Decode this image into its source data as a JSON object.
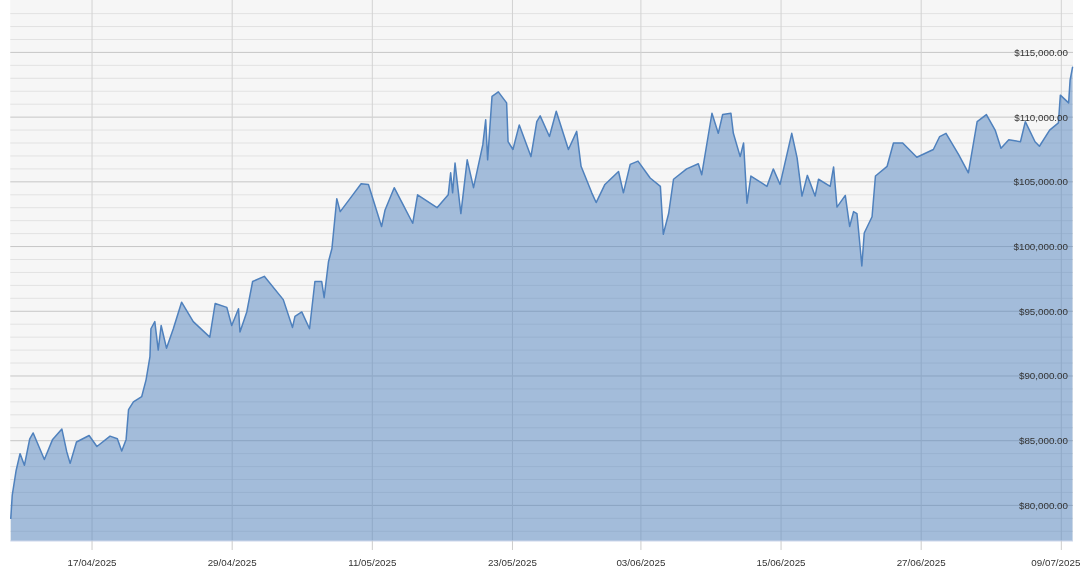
{
  "chart_data": {
    "type": "area",
    "color": "#4f81bd",
    "grid": true,
    "xlim": [
      "2025-04-10",
      "2025-07-10"
    ],
    "ylim": [
      77250,
      119050
    ],
    "xticks": [
      {
        "value": "2025-04-17",
        "label": "17/04/2025"
      },
      {
        "value": "2025-04-29",
        "label": "29/04/2025"
      },
      {
        "value": "2025-05-11",
        "label": "11/05/2025"
      },
      {
        "value": "2025-05-23",
        "label": "23/05/2025"
      },
      {
        "value": "2025-06-03",
        "label": "03/06/2025"
      },
      {
        "value": "2025-06-15",
        "label": "15/06/2025"
      },
      {
        "value": "2025-06-27",
        "label": "27/06/2025"
      },
      {
        "value": "2025-07-09",
        "label": "09/07/2025"
      }
    ],
    "yticks": [
      {
        "value": 78000,
        "label": null
      },
      {
        "value": 79000,
        "label": null
      },
      {
        "value": 80000,
        "label": "$80,000.00"
      },
      {
        "value": 81000,
        "label": null
      },
      {
        "value": 82000,
        "label": null
      },
      {
        "value": 83000,
        "label": null
      },
      {
        "value": 84000,
        "label": null
      },
      {
        "value": 85000,
        "label": "$85,000.00"
      },
      {
        "value": 86000,
        "label": null
      },
      {
        "value": 87000,
        "label": null
      },
      {
        "value": 88000,
        "label": null
      },
      {
        "value": 89000,
        "label": null
      },
      {
        "value": 90000,
        "label": "$90,000.00"
      },
      {
        "value": 91000,
        "label": null
      },
      {
        "value": 92000,
        "label": null
      },
      {
        "value": 93000,
        "label": null
      },
      {
        "value": 94000,
        "label": null
      },
      {
        "value": 95000,
        "label": "$95,000.00"
      },
      {
        "value": 96000,
        "label": null
      },
      {
        "value": 97000,
        "label": null
      },
      {
        "value": 98000,
        "label": null
      },
      {
        "value": 99000,
        "label": null
      },
      {
        "value": 100000,
        "label": "$100,000.00"
      },
      {
        "value": 101000,
        "label": null
      },
      {
        "value": 102000,
        "label": null
      },
      {
        "value": 103000,
        "label": null
      },
      {
        "value": 104000,
        "label": null
      },
      {
        "value": 105000,
        "label": "$105,000.00"
      },
      {
        "value": 106000,
        "label": null
      },
      {
        "value": 107000,
        "label": null
      },
      {
        "value": 108000,
        "label": null
      },
      {
        "value": 109000,
        "label": null
      },
      {
        "value": 110000,
        "label": "$110,000.00"
      },
      {
        "value": 111000,
        "label": null
      },
      {
        "value": 112000,
        "label": null
      },
      {
        "value": 113000,
        "label": null
      },
      {
        "value": 114000,
        "label": null
      },
      {
        "value": 115000,
        "label": "$115,000.00"
      },
      {
        "value": 116000,
        "label": null
      },
      {
        "value": 117000,
        "label": null
      },
      {
        "value": 118000,
        "label": null
      }
    ],
    "x": [
      "2025-04-10T01:00",
      "2025-04-10T04:00",
      "2025-04-10T12:00",
      "2025-04-10T20:00",
      "2025-04-11T05:00",
      "2025-04-11T16:00",
      "2025-04-11T23:00",
      "2025-04-12T22:00",
      "2025-04-13T15:00",
      "2025-04-14T10:00",
      "2025-04-14T20:00",
      "2025-04-15T03:00",
      "2025-04-15T16:00",
      "2025-04-16T18:00",
      "2025-04-17T10:00",
      "2025-04-18T13:00",
      "2025-04-19T04:00",
      "2025-04-19T13:00",
      "2025-04-19T22:00",
      "2025-04-20T03:00",
      "2025-04-20T13:00",
      "2025-04-21T06:00",
      "2025-04-21T15:00",
      "2025-04-21T23:00",
      "2025-04-22T01:00",
      "2025-04-22T09:00",
      "2025-04-22T16:00",
      "2025-04-22T22:00",
      "2025-04-23T09:00",
      "2025-04-23T23:00",
      "2025-04-24T16:00",
      "2025-04-25T16:00",
      "2025-04-27T02:00",
      "2025-04-27T13:00",
      "2025-04-28T13:00",
      "2025-04-28T23:00",
      "2025-04-29T13:00",
      "2025-04-29T16:00",
      "2025-04-30T06:00",
      "2025-04-30T18:00",
      "2025-05-01T18:00",
      "2025-05-03T09:00",
      "2025-05-04T04:00",
      "2025-05-04T09:00",
      "2025-05-04T23:00",
      "2025-05-05T15:00",
      "2025-05-06T02:00",
      "2025-05-06T16:00",
      "2025-05-06T21:00",
      "2025-05-07T06:00",
      "2025-05-07T13:00",
      "2025-05-07T23:00",
      "2025-05-08T06:00",
      "2025-05-09T09:00",
      "2025-05-10T01:00",
      "2025-05-10T16:00",
      "2025-05-11T19:00",
      "2025-05-12T02:00",
      "2025-05-12T21:00",
      "2025-05-13T13:00",
      "2025-05-14T11:00",
      "2025-05-14T21:00",
      "2025-05-16T13:00",
      "2025-05-17T12:00",
      "2025-05-17T17:00",
      "2025-05-17T21:00",
      "2025-05-18T02:00",
      "2025-05-18T14:00",
      "2025-05-19T03:00",
      "2025-05-19T16:00",
      "2025-05-20T11:00",
      "2025-05-20T17:00",
      "2025-05-20T21:00",
      "2025-05-21T06:00",
      "2025-05-21T19:00",
      "2025-05-22T12:00",
      "2025-05-22T15:00",
      "2025-05-23T01:00",
      "2025-05-23T14:00",
      "2025-05-24T14:00",
      "2025-05-25T02:00",
      "2025-05-25T09:00",
      "2025-05-26T04:00",
      "2025-05-26T18:00",
      "2025-05-27T19:00",
      "2025-05-28T12:00",
      "2025-05-28T21:00",
      "2025-05-29T19:00",
      "2025-05-30T04:00",
      "2025-05-30T22:00",
      "2025-06-01T02:00",
      "2025-06-01T12:00",
      "2025-06-02T02:00",
      "2025-06-02T18:00",
      "2025-06-03T19:00",
      "2025-06-04T16:00",
      "2025-06-04T22:00",
      "2025-06-05T09:00",
      "2025-06-05T19:00",
      "2025-06-06T22:00",
      "2025-06-07T22:00",
      "2025-06-08T05:00",
      "2025-06-09T02:00",
      "2025-06-09T15:00",
      "2025-06-10T00:00",
      "2025-06-10T17:00",
      "2025-06-10T22:00",
      "2025-06-11T12:00",
      "2025-06-11T19:00",
      "2025-06-12T02:00",
      "2025-06-12T10:00",
      "2025-06-13T19:00",
      "2025-06-14T08:00",
      "2025-06-14T22:00",
      "2025-06-15T22:00",
      "2025-06-16T09:00",
      "2025-06-16T19:00",
      "2025-06-17T06:00",
      "2025-06-17T22:00",
      "2025-06-18T05:00",
      "2025-06-19T05:00",
      "2025-06-19T12:00",
      "2025-06-19T19:00",
      "2025-06-20T12:00",
      "2025-06-20T21:00",
      "2025-06-21T05:00",
      "2025-06-21T12:00",
      "2025-06-21T19:00",
      "2025-06-21T22:00",
      "2025-06-22T03:00",
      "2025-06-22T19:00",
      "2025-06-23T02:00",
      "2025-06-24T02:00",
      "2025-06-24T15:00",
      "2025-06-25T10:00",
      "2025-06-26T15:00",
      "2025-06-28T01:00",
      "2025-06-28T14:00",
      "2025-06-29T03:00",
      "2025-06-30T05:00",
      "2025-07-01T01:00",
      "2025-07-01T19:00",
      "2025-07-02T14:00",
      "2025-07-03T08:00",
      "2025-07-03T20:00",
      "2025-07-04T12:00",
      "2025-07-05T12:00",
      "2025-07-05T22:00",
      "2025-07-06T18:00",
      "2025-07-07T03:00",
      "2025-07-08T00:00",
      "2025-07-08T18:00",
      "2025-07-08T22:00",
      "2025-07-09T15:00",
      "2025-07-09T18:00",
      "2025-07-09T23:00"
    ],
    "values": [
      79000,
      80800,
      82700,
      84000,
      83100,
      85150,
      85600,
      83550,
      85100,
      85900,
      84150,
      83250,
      84900,
      85400,
      84550,
      85350,
      85150,
      84200,
      85100,
      87400,
      88000,
      88400,
      89700,
      91500,
      93650,
      94200,
      92000,
      93900,
      92150,
      93650,
      95700,
      94200,
      93000,
      95600,
      95300,
      93900,
      95200,
      93400,
      94950,
      97300,
      97700,
      95900,
      93750,
      94600,
      94950,
      93650,
      97300,
      97300,
      96050,
      98850,
      99850,
      103700,
      102700,
      104050,
      104850,
      104800,
      101550,
      102800,
      104550,
      103400,
      101800,
      104000,
      103000,
      104000,
      105700,
      104150,
      106450,
      102550,
      106700,
      104550,
      107850,
      109800,
      106700,
      111600,
      111950,
      111100,
      108100,
      107500,
      109400,
      106950,
      109650,
      110100,
      108500,
      110450,
      107500,
      108900,
      106200,
      104150,
      103400,
      104800,
      105800,
      104150,
      106350,
      106600,
      105300,
      104650,
      100950,
      102550,
      105200,
      106000,
      106400,
      105550,
      110300,
      108750,
      110200,
      110300,
      108750,
      106950,
      108000,
      103350,
      105450,
      104650,
      106000,
      104800,
      108750,
      106850,
      103900,
      105500,
      103900,
      105200,
      104650,
      106150,
      103050,
      103950,
      101550,
      102700,
      102550,
      99750,
      98500,
      101050,
      102300,
      105450,
      106200,
      108000,
      108000,
      106900,
      107500,
      108500,
      108750,
      107100,
      105700,
      109650,
      110200,
      109000,
      107600,
      108250,
      108100,
      109650,
      108100,
      107750,
      109000,
      109550,
      111700,
      111100,
      112850,
      113850
    ]
  }
}
